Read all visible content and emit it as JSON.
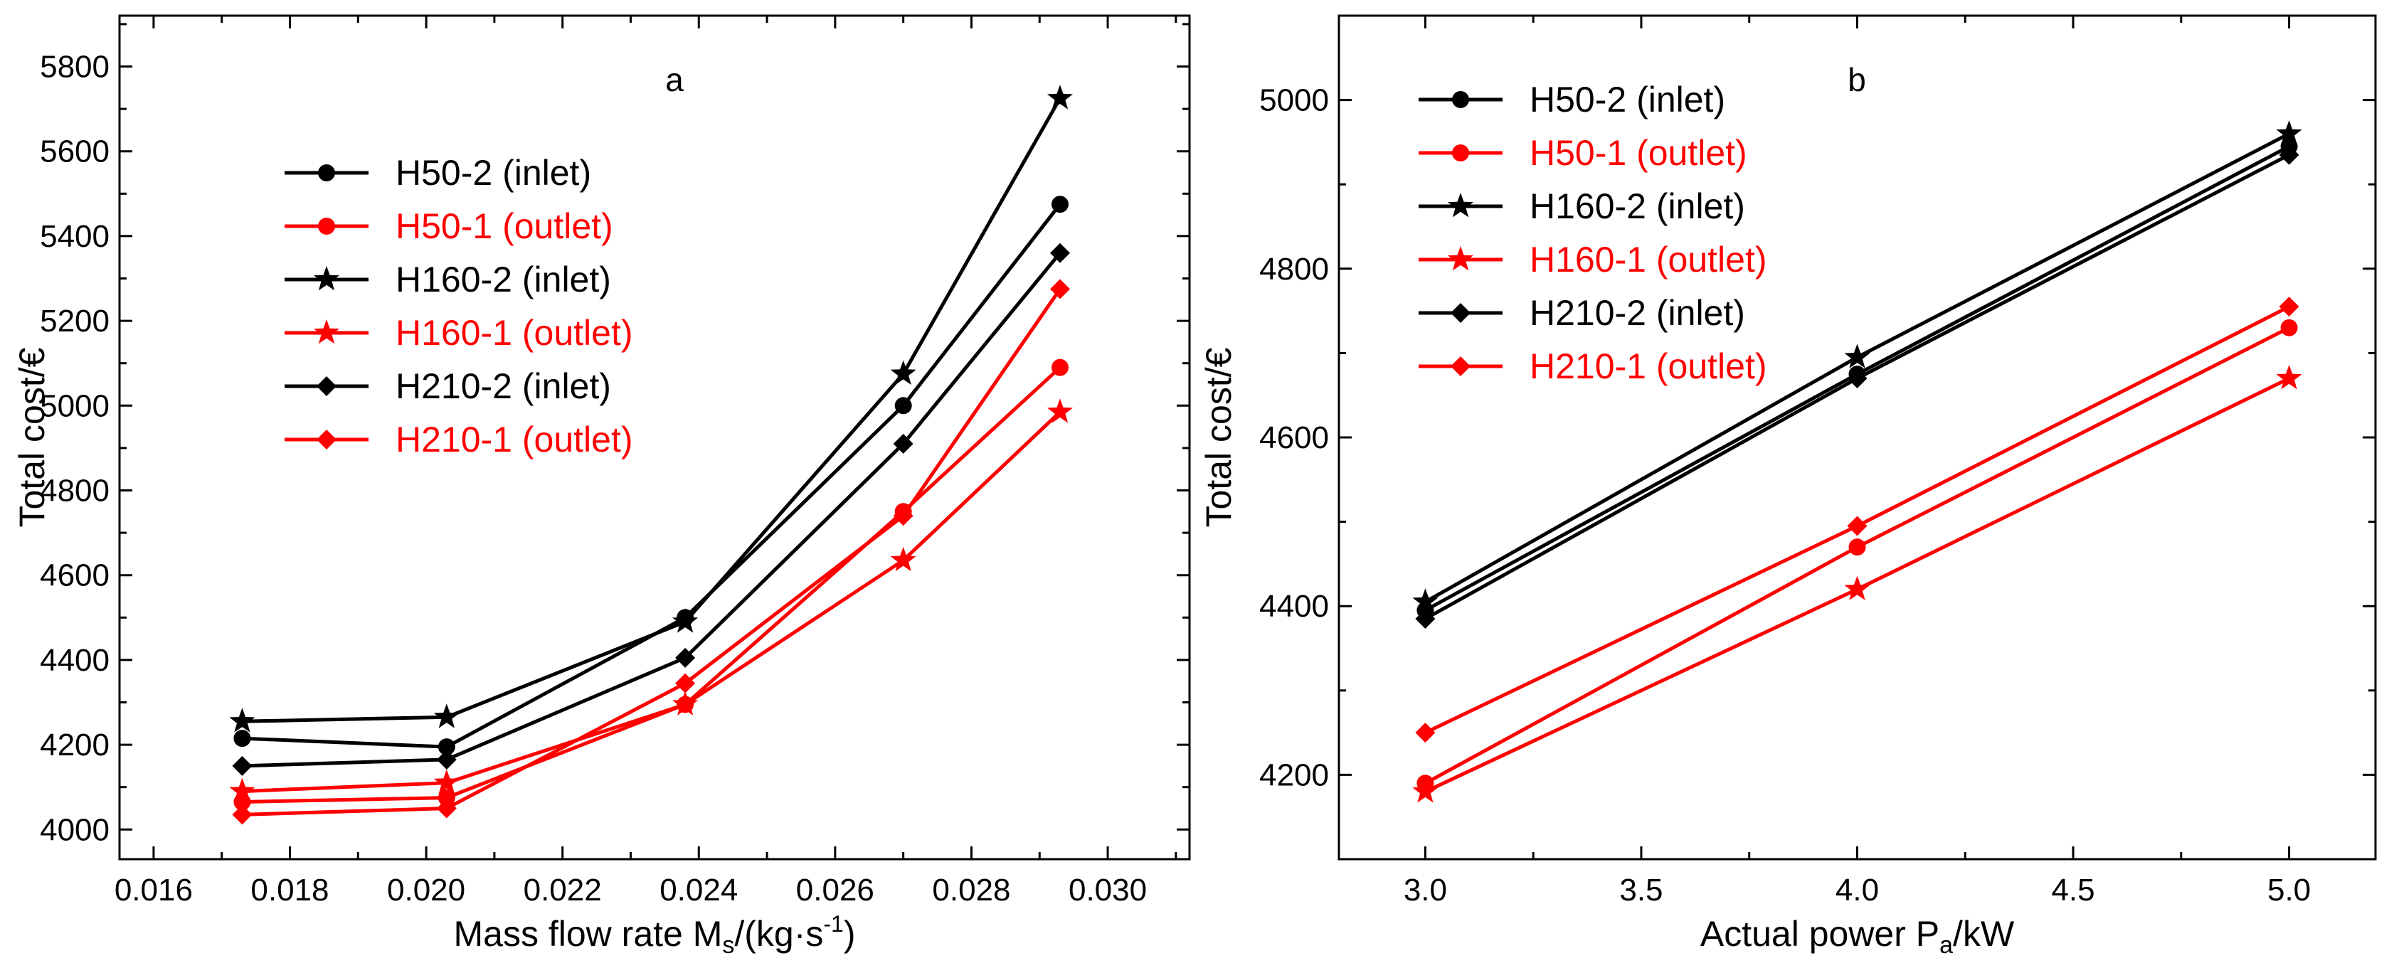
{
  "chart_data": [
    {
      "type": "line",
      "panel_label": "a",
      "xlabel_main": "Mass flow rate M",
      "xlabel_sub": "s",
      "xlabel_units_pre": "/(kg·s",
      "xlabel_units_sup": "-1",
      "xlabel_units_post": ")",
      "ylabel": "Total cost/€",
      "xlim": [
        0.0155,
        0.0312
      ],
      "ylim": [
        3930,
        5920
      ],
      "xticks": [
        0.016,
        0.018,
        0.02,
        0.022,
        0.024,
        0.026,
        0.028,
        0.03
      ],
      "xtick_labels": [
        "0.016",
        "0.018",
        "0.020",
        "0.022",
        "0.024",
        "0.026",
        "0.028",
        "0.030"
      ],
      "yticks": [
        4000,
        4200,
        4400,
        4600,
        4800,
        5000,
        5200,
        5400,
        5600,
        5800
      ],
      "ytick_labels": [
        "4000",
        "4200",
        "4400",
        "4600",
        "4800",
        "5000",
        "5200",
        "5400",
        "5600",
        "5800"
      ],
      "grid": false,
      "legend_position": "top-left",
      "x": [
        0.0173,
        0.0203,
        0.0238,
        0.027,
        0.0293
      ],
      "series": [
        {
          "name": "H50-2 (inlet)",
          "color": "#000000",
          "marker": "circle",
          "values": [
            4215,
            4195,
            4500,
            5000,
            5475
          ]
        },
        {
          "name": "H50-1 (outlet)",
          "color": "#ff0000",
          "marker": "circle",
          "values": [
            4065,
            4075,
            4295,
            4750,
            5090
          ]
        },
        {
          "name": "H160-2 (inlet)",
          "color": "#000000",
          "marker": "star",
          "values": [
            4255,
            4265,
            4490,
            5075,
            5725
          ]
        },
        {
          "name": "H160-1 (outlet)",
          "color": "#ff0000",
          "marker": "star",
          "values": [
            4090,
            4110,
            4295,
            4635,
            4985
          ]
        },
        {
          "name": "H210-2 (inlet)",
          "color": "#000000",
          "marker": "diamond",
          "values": [
            4150,
            4165,
            4405,
            4910,
            5360
          ]
        },
        {
          "name": "H210-1 (outlet)",
          "color": "#ff0000",
          "marker": "diamond",
          "values": [
            4035,
            4050,
            4345,
            4740,
            5275
          ]
        }
      ]
    },
    {
      "type": "line",
      "panel_label": "b",
      "xlabel_main": "Actual power P",
      "xlabel_sub": "a",
      "xlabel_units_pre": "/kW",
      "xlabel_units_sup": "",
      "xlabel_units_post": "",
      "ylabel": "Total cost/€",
      "xlim": [
        2.8,
        5.2
      ],
      "ylim": [
        4100,
        5100
      ],
      "xticks": [
        3.0,
        3.5,
        4.0,
        4.5,
        5.0
      ],
      "xtick_labels": [
        "3.0",
        "3.5",
        "4.0",
        "4.5",
        "5.0"
      ],
      "yticks": [
        4200,
        4400,
        4600,
        4800,
        5000
      ],
      "ytick_labels": [
        "4200",
        "4400",
        "4600",
        "4800",
        "5000"
      ],
      "grid": false,
      "legend_position": "top-left",
      "x": [
        3.0,
        4.0,
        5.0
      ],
      "series": [
        {
          "name": "H50-2 (inlet)",
          "color": "#000000",
          "marker": "circle",
          "values": [
            4395,
            4675,
            4945
          ]
        },
        {
          "name": "H50-1 (outlet)",
          "color": "#ff0000",
          "marker": "circle",
          "values": [
            4190,
            4470,
            4730
          ]
        },
        {
          "name": "H160-2 (inlet)",
          "color": "#000000",
          "marker": "star",
          "values": [
            4405,
            4695,
            4960
          ]
        },
        {
          "name": "H160-1 (outlet)",
          "color": "#ff0000",
          "marker": "star",
          "values": [
            4180,
            4420,
            4670
          ]
        },
        {
          "name": "H210-2 (inlet)",
          "color": "#000000",
          "marker": "diamond",
          "values": [
            4385,
            4670,
            4935
          ]
        },
        {
          "name": "H210-1 (outlet)",
          "color": "#ff0000",
          "marker": "diamond",
          "values": [
            4250,
            4495,
            4755
          ]
        }
      ]
    }
  ]
}
